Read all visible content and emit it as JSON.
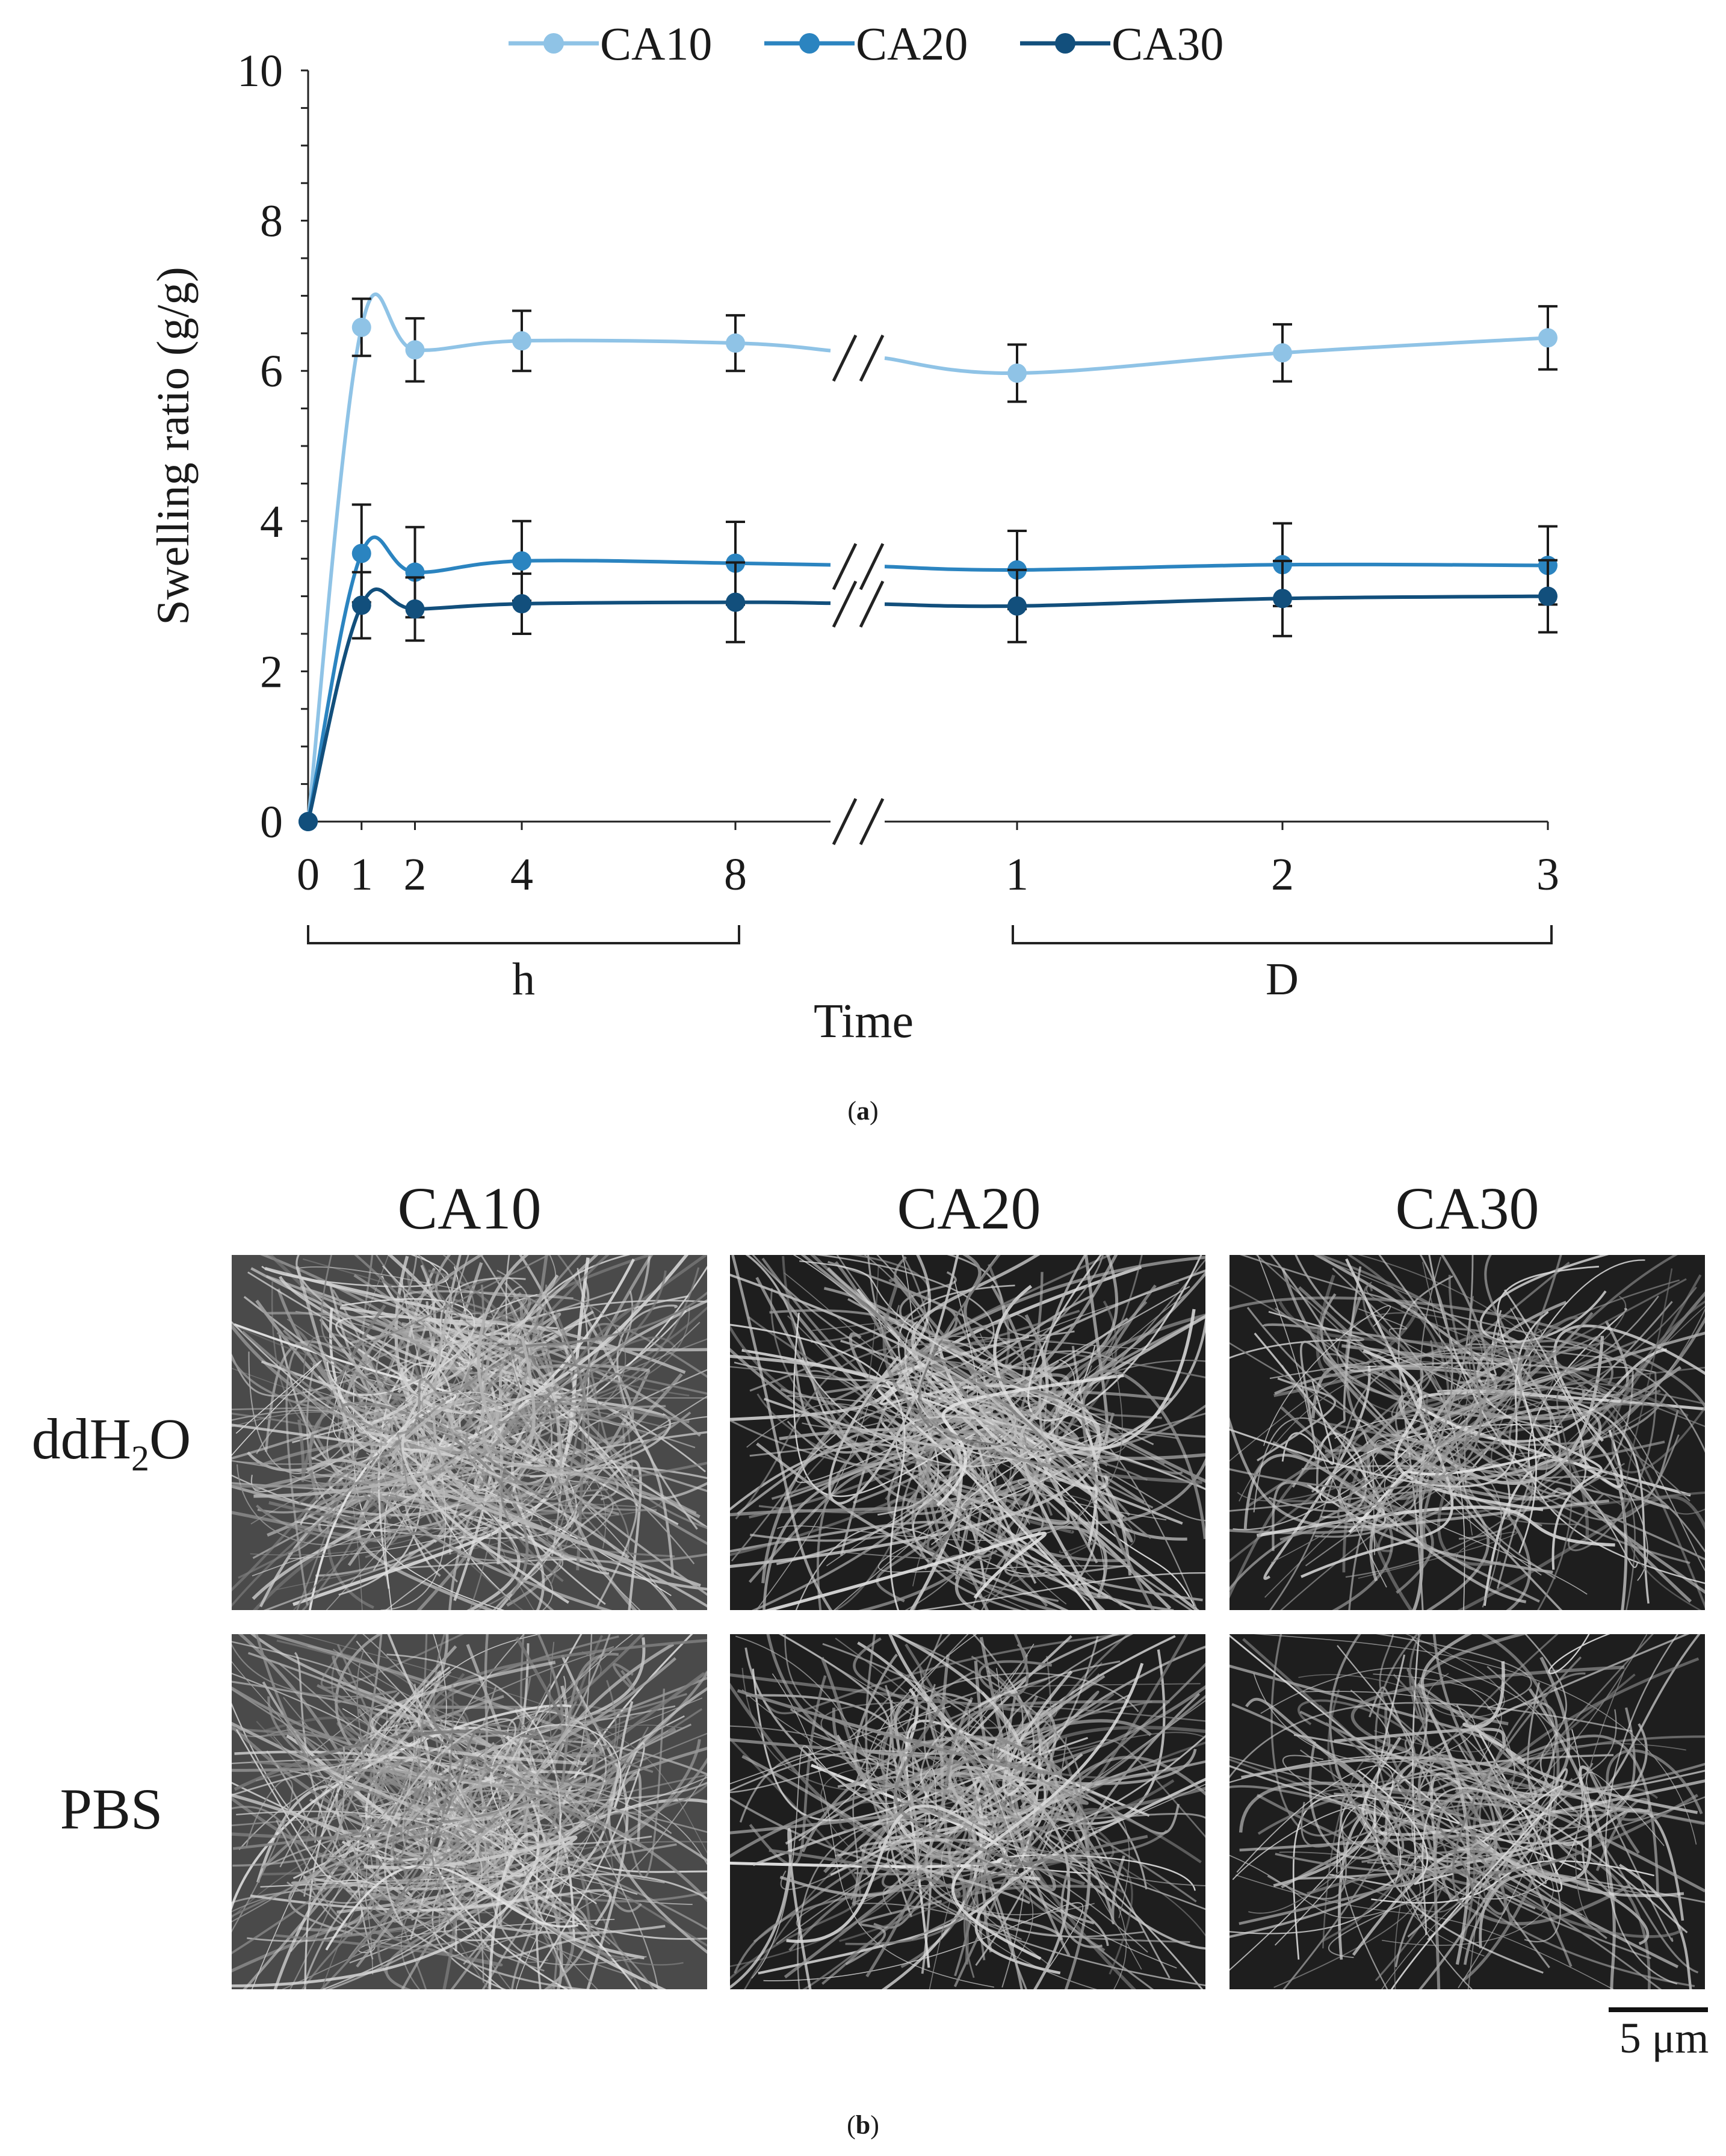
{
  "chart_data": {
    "type": "line",
    "ylabel": "Swelling ratio (g/g)",
    "xlabel": "Time",
    "ylim": [
      0,
      10
    ],
    "yticks": [
      "0",
      "2",
      "4",
      "6",
      "8",
      "10"
    ],
    "grid": false,
    "legend": "top",
    "axis_break": "between 8 h and 1 D",
    "x_groups": [
      {
        "label": "h",
        "ticks": [
          "0",
          "1",
          "2",
          "4",
          "8"
        ]
      },
      {
        "label": "D",
        "ticks": [
          "1",
          "2",
          "3"
        ]
      }
    ],
    "x": [
      "0 h",
      "1 h",
      "2 h",
      "4 h",
      "8 h",
      "1 D",
      "2 D",
      "3 D"
    ],
    "series": [
      {
        "name": "CA10",
        "color": "#8fc3e6",
        "values": [
          0,
          6.58,
          6.28,
          6.4,
          6.37,
          5.97,
          6.24,
          6.44
        ],
        "errors": [
          0,
          0.38,
          0.42,
          0.4,
          0.37,
          0.38,
          0.38,
          0.42
        ]
      },
      {
        "name": "CA20",
        "color": "#2b84c0",
        "values": [
          0,
          3.57,
          3.32,
          3.47,
          3.44,
          3.35,
          3.42,
          3.41
        ],
        "errors": [
          0,
          0.65,
          0.6,
          0.53,
          0.55,
          0.52,
          0.55,
          0.52
        ]
      },
      {
        "name": "CA30",
        "color": "#124f7c",
        "values": [
          0,
          2.88,
          2.83,
          2.9,
          2.92,
          2.87,
          2.97,
          3.0
        ],
        "errors": [
          0,
          0.44,
          0.42,
          0.4,
          0.53,
          0.48,
          0.5,
          0.48
        ]
      }
    ]
  },
  "panel_labels": {
    "a": "a",
    "b": "b"
  },
  "sem_grid": {
    "columns": [
      "CA10",
      "CA20",
      "CA30"
    ],
    "rows": [
      "ddH2O",
      "PBS"
    ],
    "scale_bar": "5 μm"
  }
}
